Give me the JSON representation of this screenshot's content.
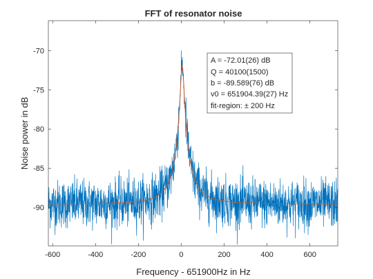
{
  "chart_data": {
    "type": "line",
    "title": "FFT of resonator noise",
    "xlabel": "Frequency - 651900Hz in Hz",
    "ylabel": "Noise power in dB",
    "xlim": [
      -620,
      730
    ],
    "ylim": [
      -94.9,
      -66.2
    ],
    "x_ticks": [
      -600,
      -400,
      -200,
      0,
      200,
      400,
      600
    ],
    "y_ticks": [
      -90,
      -85,
      -80,
      -75,
      -70
    ],
    "x_tick_labels": [
      "-600",
      "-400",
      "-200",
      "0",
      "200",
      "400",
      "600"
    ],
    "y_tick_labels": [
      "-90",
      "-85",
      "-80",
      "-75",
      "-70"
    ],
    "grid": false,
    "series": [
      {
        "role": "measured-noise",
        "color": "#0072BD",
        "x_range": [
          -620,
          730
        ],
        "baseline_db": -89.6,
        "peak_db": -69.6,
        "peak_x": 4,
        "noise_std_db": 1.5
      },
      {
        "role": "lorentzian-fit",
        "color": "#D95319",
        "A_db": -72.01,
        "Q": 40100,
        "b_db": -89.589,
        "center_offset_hz": 4.39,
        "carrier_hz": 651900,
        "fit_region_hz": 200
      }
    ],
    "annotation": {
      "lines": [
        "A = -72.01(26) dB",
        "Q = 40100(1500)",
        "b = -89.589(76) dB",
        "v0 = 651904.39(27) Hz",
        "fit-region: ± 200 Hz"
      ]
    }
  }
}
